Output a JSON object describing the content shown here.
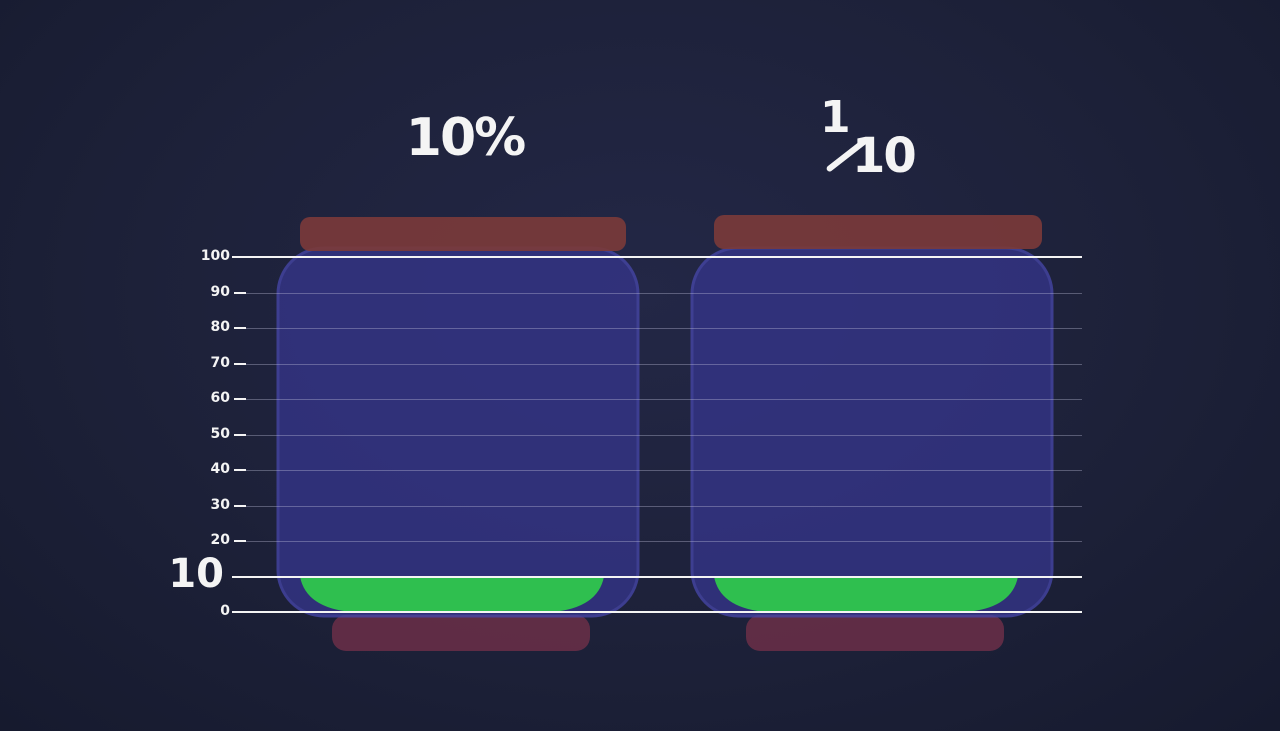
{
  "labels": {
    "left_jar": "10%",
    "right_jar_numerator": "1",
    "right_jar_denominator": "10"
  },
  "scale": {
    "ticks": [
      "100",
      "90",
      "80",
      "70",
      "60",
      "50",
      "40",
      "30",
      "20",
      "10",
      "0"
    ],
    "highlighted_tick": "10"
  },
  "chart_data": {
    "type": "bar",
    "categories": [
      "10%",
      "1/10"
    ],
    "values": [
      10,
      10
    ],
    "ylim": [
      0,
      100
    ],
    "yticks": [
      0,
      10,
      20,
      30,
      40,
      50,
      60,
      70,
      80,
      90,
      100
    ],
    "grid": true
  },
  "colors": {
    "background": "#1d2139",
    "jar_glass": "#3a3a8c",
    "jar_lid": "#7a3a3a",
    "jar_base": "#6b2f48",
    "liquid": "#2fbf4f",
    "text": "#f4f4f4"
  }
}
